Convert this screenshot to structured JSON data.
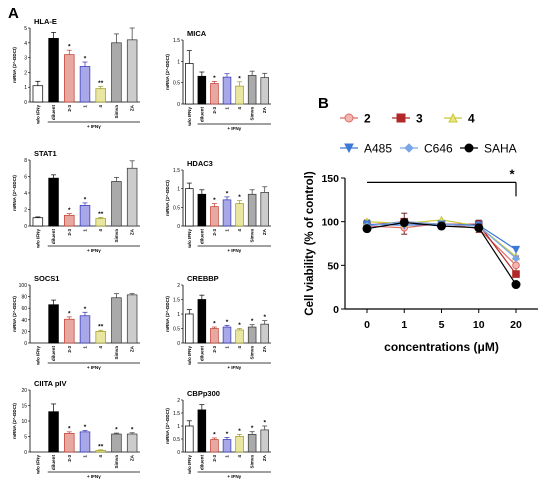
{
  "panel_labels": {
    "a": "A",
    "b": "B"
  },
  "colors": {
    "wo": "#ffffff",
    "diluent": "#000000",
    "c23": "#e8a8a2",
    "c1": "#a8a8e8",
    "c4": "#e8e6a0",
    "simva": "#aaaaaa",
    "za": "#cccccc",
    "s2": "#e06a62",
    "s3": "#b22828",
    "s4": "#c8c83a",
    "a485": "#3c78d8",
    "c646": "#7aa6e8",
    "saha": "#000000"
  },
  "chart_data": [
    {
      "type": "bar",
      "title": "HLA-E",
      "ylabel": "mRNA (2^-DDCt)",
      "ylim": [
        0,
        5
      ],
      "yticks": [
        0,
        1,
        2,
        3,
        4,
        5
      ],
      "categories": [
        "w/o IFNγ",
        "diluent",
        "2-3",
        "1",
        "4",
        "Simva",
        "ZA"
      ],
      "values": [
        1.1,
        4.3,
        3.2,
        2.4,
        0.9,
        4.0,
        4.2
      ],
      "errors": [
        0.3,
        0.4,
        0.3,
        0.3,
        0.15,
        0.6,
        0.8
      ],
      "marks": [
        "",
        "",
        "*",
        "*",
        "**",
        "",
        ""
      ],
      "group_label": "+ IFNγ"
    },
    {
      "type": "bar",
      "title": "MICA",
      "ylabel": "mRNA (2^-DDCt)",
      "ylim": [
        0,
        1.5
      ],
      "yticks": [
        0.0,
        0.5,
        1.0,
        1.5
      ],
      "categories": [
        "w/o IFNγ",
        "diluent",
        "2-3",
        "1",
        "4",
        "Simva",
        "ZA"
      ],
      "values": [
        0.95,
        0.65,
        0.48,
        0.63,
        0.42,
        0.67,
        0.62
      ],
      "errors": [
        0.3,
        0.1,
        0.05,
        0.08,
        0.1,
        0.1,
        0.1
      ],
      "marks": [
        "",
        "",
        "*",
        "",
        "*",
        "",
        ""
      ],
      "group_label": "+ IFNγ"
    },
    {
      "type": "bar",
      "title": "STAT1",
      "ylabel": "mRNA (2^-DDCt)",
      "ylim": [
        0,
        8
      ],
      "yticks": [
        0,
        2,
        4,
        6,
        8
      ],
      "categories": [
        "w/o IFNγ",
        "diluent",
        "2-3",
        "1",
        "4",
        "Simva",
        "ZA"
      ],
      "values": [
        1.0,
        5.8,
        1.3,
        2.5,
        0.9,
        5.4,
        7.0
      ],
      "errors": [
        0.1,
        0.4,
        0.2,
        0.3,
        0.15,
        0.5,
        0.9
      ],
      "marks": [
        "",
        "",
        "*",
        "*",
        "**",
        "",
        ""
      ],
      "group_label": "+ IFNγ"
    },
    {
      "type": "bar",
      "title": "HDAC3",
      "ylabel": "mRNA (2^-DDCt)",
      "ylim": [
        0,
        1.5
      ],
      "yticks": [
        0.0,
        0.5,
        1.0,
        1.5
      ],
      "categories": [
        "w/o IFNγ",
        "diluent",
        "2-3",
        "1",
        "4",
        "Simva",
        "ZA"
      ],
      "values": [
        1.0,
        0.85,
        0.52,
        0.7,
        0.6,
        0.85,
        0.9
      ],
      "errors": [
        0.15,
        0.12,
        0.08,
        0.08,
        0.08,
        0.12,
        0.15
      ],
      "marks": [
        "",
        "",
        "*",
        "*",
        "*",
        "",
        ""
      ],
      "group_label": "+ IFNγ"
    },
    {
      "type": "bar",
      "title": "SOCS1",
      "ylabel": "mRNA (2^-DDCt)",
      "ylim": [
        0,
        100
      ],
      "yticks": [
        0,
        20,
        40,
        60,
        80,
        100
      ],
      "categories": [
        "w/o IFNγ",
        "diluent",
        "2-3",
        "1",
        "4",
        "Simva",
        "ZA"
      ],
      "values": [
        0,
        66,
        41,
        47,
        20,
        78,
        83
      ],
      "errors": [
        0,
        8,
        4,
        6,
        2,
        7,
        2
      ],
      "marks": [
        "",
        "",
        "*",
        "*",
        "**",
        "",
        ""
      ],
      "group_label": "+ IFNγ"
    },
    {
      "type": "bar",
      "title": "CREBBP",
      "ylabel": "mRNA (2^-DDCt)",
      "ylim": [
        0,
        2.0
      ],
      "yticks": [
        0.0,
        0.5,
        1.0,
        1.5,
        2.0
      ],
      "categories": [
        "w/o IFNγ",
        "diluent",
        "2-3",
        "1",
        "4",
        "Simva",
        "ZA"
      ],
      "values": [
        1.0,
        1.5,
        0.5,
        0.55,
        0.45,
        0.55,
        0.65
      ],
      "errors": [
        0.15,
        0.15,
        0.05,
        0.06,
        0.05,
        0.08,
        0.12
      ],
      "marks": [
        "",
        "",
        "*",
        "*",
        "*",
        "*",
        "*"
      ],
      "group_label": "+ IFNγ"
    },
    {
      "type": "bar",
      "title": "CIITA pIV",
      "ylabel": "mRNA (2^-DDCt)",
      "ylim": [
        0,
        20
      ],
      "yticks": [
        0,
        5,
        10,
        15,
        20
      ],
      "categories": [
        "w/o IFNγ",
        "diluent",
        "2-3",
        "1",
        "4",
        "Simva",
        "ZA"
      ],
      "values": [
        0,
        13,
        6,
        6.5,
        0.5,
        5.8,
        5.8
      ],
      "errors": [
        0,
        2.5,
        0.5,
        0.4,
        0.2,
        0.3,
        0.4
      ],
      "marks": [
        "",
        "",
        "*",
        "*",
        "**",
        "*",
        "*"
      ],
      "group_label": "+ IFNγ"
    },
    {
      "type": "bar",
      "title": "CBPp300",
      "ylabel": "mRNA (2^-DDCt)",
      "ylim": [
        0,
        2.0
      ],
      "yticks": [
        0.0,
        0.5,
        1.0,
        1.5,
        2.0
      ],
      "categories": [
        "w/o IFNγ",
        "diluent",
        "2-3",
        "1",
        "4",
        "Simva",
        "ZA"
      ],
      "values": [
        1.0,
        1.62,
        0.48,
        0.48,
        0.6,
        0.68,
        0.85
      ],
      "errors": [
        0.2,
        0.2,
        0.06,
        0.08,
        0.08,
        0.1,
        0.15
      ],
      "marks": [
        "",
        "",
        "*",
        "*",
        "*",
        "*",
        "*"
      ],
      "group_label": "+ IFNγ"
    },
    {
      "type": "line",
      "xlabel": "concentrations (μM)",
      "ylabel": "Cell viability (% of control)",
      "x": [
        "0",
        "1",
        "5",
        "10",
        "20"
      ],
      "ylim": [
        0,
        150
      ],
      "yticks": [
        0,
        50,
        100,
        150
      ],
      "series": [
        {
          "name": "2",
          "values": [
            95,
            93,
            98,
            92,
            50
          ]
        },
        {
          "name": "3",
          "values": [
            96,
            100,
            97,
            97,
            40
          ]
        },
        {
          "name": "4",
          "values": [
            100,
            98,
            102,
            95,
            60
          ]
        },
        {
          "name": "A485",
          "values": [
            97,
            96,
            97,
            96,
            68
          ]
        },
        {
          "name": "C646",
          "values": [
            95,
            100,
            97,
            95,
            58
          ]
        },
        {
          "name": "SAHA",
          "values": [
            92,
            99,
            95,
            93,
            28
          ]
        }
      ],
      "errors": [
        6,
        12,
        4,
        7,
        10
      ],
      "significance": "*"
    }
  ]
}
